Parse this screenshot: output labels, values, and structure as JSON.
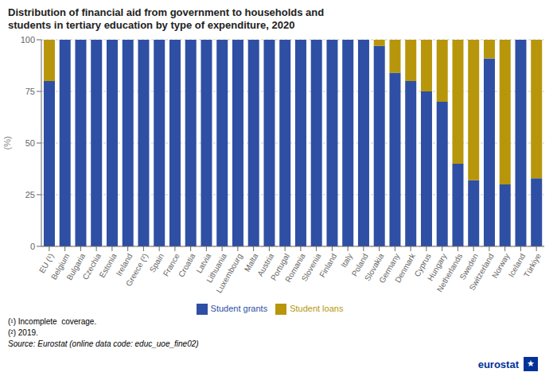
{
  "chart_data": {
    "type": "bar",
    "stacked": true,
    "title": "Distribution of financial aid from government to households and\nstudents in tertiary education by type of expenditure, 2020",
    "ylabel": "(%)",
    "categories": [
      "EU (¹)",
      "Belgium",
      "Bulgaria",
      "Czechia",
      "Estonia",
      "Ireland",
      "Greece (²)",
      "Spain",
      "France",
      "Croatia",
      "Latvia",
      "Lithuania",
      "Luxembourg",
      "Malta",
      "Austria",
      "Portugal",
      "Romania",
      "Slovenia",
      "Finland",
      "Italy",
      "Poland",
      "Slovakia",
      "Germany",
      "Denmark",
      "Cyprus",
      "Hungary",
      "Netherlands",
      "Sweden",
      "Switzerland",
      "Norway",
      "Iceland",
      "Türkiye"
    ],
    "series": [
      {
        "name": "Student grants",
        "color": "#2E4FA3",
        "values": [
          80,
          100,
          100,
          100,
          100,
          100,
          100,
          100,
          100,
          100,
          100,
          100,
          100,
          100,
          100,
          100,
          100,
          100,
          100,
          100,
          100,
          97,
          84,
          80,
          75,
          70,
          40,
          32,
          91,
          30,
          100,
          33
        ]
      },
      {
        "name": "Student loans",
        "color": "#B8960C",
        "values": [
          20,
          0,
          0,
          0,
          0,
          0,
          0,
          0,
          0,
          0,
          0,
          0,
          0,
          0,
          0,
          0,
          0,
          0,
          0,
          0,
          0,
          3,
          16,
          20,
          25,
          30,
          60,
          68,
          9,
          70,
          0,
          67
        ]
      }
    ],
    "ylim": [
      0,
      100
    ],
    "yticks": [
      0,
      25,
      50,
      75,
      100
    ],
    "grid": true,
    "legend": "bottom",
    "annotations": [
      "(¹) Incomplete  coverage.",
      "(²) 2019.",
      "Source: Eurostat (online data code: educ_uoe_fine02)",
      "eurostat",
      "★"
    ]
  }
}
